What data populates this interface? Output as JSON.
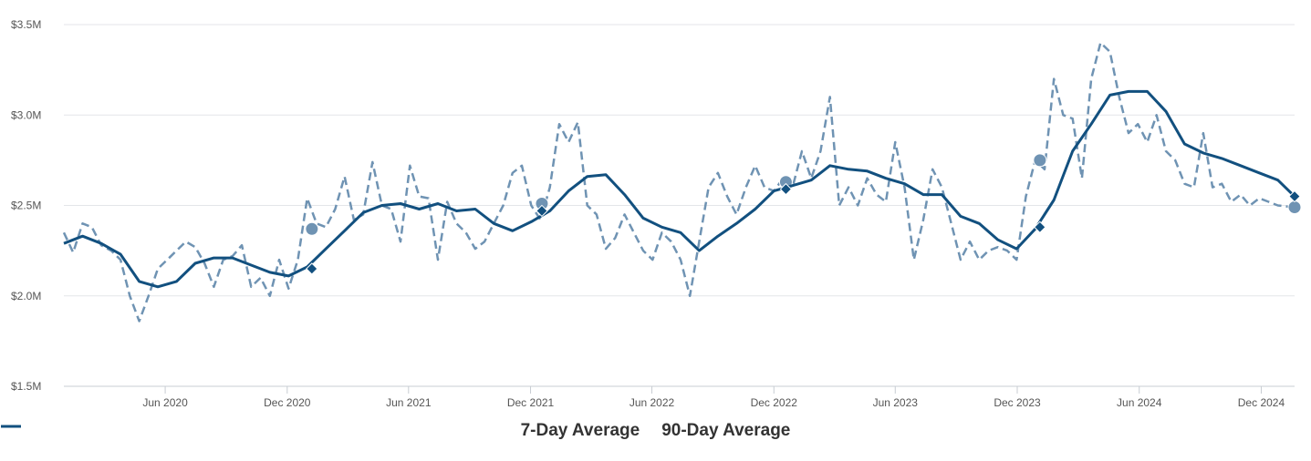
{
  "chart_data": {
    "type": "line",
    "title": "",
    "xlabel": "",
    "ylabel": "",
    "y_tick_labels": [
      "$1.5M",
      "$2.0M",
      "$2.5M",
      "$3.0M",
      "$3.5M"
    ],
    "y_ticks": [
      1500000,
      2000000,
      2500000,
      3000000,
      3500000
    ],
    "ylim": [
      1500000,
      3500000
    ],
    "xlim": [
      "2020-01-01",
      "2025-01-20"
    ],
    "x_tick_labels": [
      "Jun 2020",
      "Dec 2020",
      "Jun 2021",
      "Dec 2021",
      "Jun 2022",
      "Dec 2022",
      "Jun 2023",
      "Dec 2023",
      "Jun 2024",
      "Dec 2024"
    ],
    "x_ticks": [
      "2020-06-01",
      "2020-12-01",
      "2021-06-01",
      "2021-12-01",
      "2022-06-01",
      "2022-12-01",
      "2023-06-01",
      "2023-12-01",
      "2024-06-01",
      "2024-12-01"
    ],
    "grid": true,
    "legend_position": "bottom-center",
    "series": [
      {
        "name": "7-Day Average",
        "style": "dashed",
        "color": "#6f93b3",
        "marker": "circle",
        "points": [
          [
            "2020-01-01",
            2350000
          ],
          [
            "2020-01-15",
            2240000
          ],
          [
            "2020-01-29",
            2400000
          ],
          [
            "2020-02-12",
            2380000
          ],
          [
            "2020-02-26",
            2280000
          ],
          [
            "2020-03-12",
            2250000
          ],
          [
            "2020-03-26",
            2200000
          ],
          [
            "2020-04-09",
            2000000
          ],
          [
            "2020-04-23",
            1860000
          ],
          [
            "2020-05-07",
            2000000
          ],
          [
            "2020-05-21",
            2150000
          ],
          [
            "2020-06-04",
            2200000
          ],
          [
            "2020-06-18",
            2250000
          ],
          [
            "2020-07-02",
            2300000
          ],
          [
            "2020-07-16",
            2270000
          ],
          [
            "2020-07-30",
            2180000
          ],
          [
            "2020-08-13",
            2050000
          ],
          [
            "2020-08-27",
            2200000
          ],
          [
            "2020-09-10",
            2220000
          ],
          [
            "2020-09-24",
            2280000
          ],
          [
            "2020-10-08",
            2050000
          ],
          [
            "2020-10-22",
            2100000
          ],
          [
            "2020-11-05",
            2000000
          ],
          [
            "2020-11-19",
            2200000
          ],
          [
            "2020-12-03",
            2040000
          ],
          [
            "2020-12-17",
            2200000
          ],
          [
            "2020-12-31",
            2540000
          ],
          [
            "2021-01-14",
            2400000
          ],
          [
            "2021-01-28",
            2380000
          ],
          [
            "2021-02-11",
            2480000
          ],
          [
            "2021-02-25",
            2660000
          ],
          [
            "2021-03-11",
            2420000
          ],
          [
            "2021-03-25",
            2450000
          ],
          [
            "2021-04-08",
            2740000
          ],
          [
            "2021-04-22",
            2500000
          ],
          [
            "2021-05-06",
            2480000
          ],
          [
            "2021-05-20",
            2300000
          ],
          [
            "2021-06-03",
            2720000
          ],
          [
            "2021-06-17",
            2550000
          ],
          [
            "2021-07-01",
            2540000
          ],
          [
            "2021-07-15",
            2200000
          ],
          [
            "2021-07-29",
            2520000
          ],
          [
            "2021-08-12",
            2400000
          ],
          [
            "2021-08-26",
            2350000
          ],
          [
            "2021-09-09",
            2260000
          ],
          [
            "2021-09-23",
            2300000
          ],
          [
            "2021-10-07",
            2400000
          ],
          [
            "2021-10-21",
            2500000
          ],
          [
            "2021-11-04",
            2680000
          ],
          [
            "2021-11-18",
            2720000
          ],
          [
            "2021-12-02",
            2500000
          ],
          [
            "2021-12-16",
            2420000
          ],
          [
            "2021-12-30",
            2600000
          ],
          [
            "2022-01-13",
            2950000
          ],
          [
            "2022-01-27",
            2850000
          ],
          [
            "2022-02-10",
            2960000
          ],
          [
            "2022-02-24",
            2500000
          ],
          [
            "2022-03-10",
            2450000
          ],
          [
            "2022-03-24",
            2260000
          ],
          [
            "2022-04-07",
            2320000
          ],
          [
            "2022-04-21",
            2450000
          ],
          [
            "2022-05-05",
            2350000
          ],
          [
            "2022-05-19",
            2250000
          ],
          [
            "2022-06-02",
            2200000
          ],
          [
            "2022-06-16",
            2350000
          ],
          [
            "2022-06-30",
            2300000
          ],
          [
            "2022-07-14",
            2200000
          ],
          [
            "2022-07-28",
            2000000
          ],
          [
            "2022-08-11",
            2300000
          ],
          [
            "2022-08-25",
            2600000
          ],
          [
            "2022-09-08",
            2680000
          ],
          [
            "2022-09-22",
            2550000
          ],
          [
            "2022-10-06",
            2450000
          ],
          [
            "2022-10-20",
            2600000
          ],
          [
            "2022-11-03",
            2720000
          ],
          [
            "2022-11-17",
            2600000
          ],
          [
            "2022-12-01",
            2580000
          ],
          [
            "2022-12-15",
            2650000
          ],
          [
            "2022-12-29",
            2600000
          ],
          [
            "2023-01-12",
            2800000
          ],
          [
            "2023-01-26",
            2650000
          ],
          [
            "2023-02-09",
            2800000
          ],
          [
            "2023-02-23",
            3100000
          ],
          [
            "2023-03-09",
            2500000
          ],
          [
            "2023-03-23",
            2600000
          ],
          [
            "2023-04-06",
            2500000
          ],
          [
            "2023-04-20",
            2650000
          ],
          [
            "2023-05-04",
            2560000
          ],
          [
            "2023-05-18",
            2520000
          ],
          [
            "2023-06-01",
            2850000
          ],
          [
            "2023-06-15",
            2600000
          ],
          [
            "2023-06-29",
            2200000
          ],
          [
            "2023-07-13",
            2420000
          ],
          [
            "2023-07-27",
            2700000
          ],
          [
            "2023-08-10",
            2600000
          ],
          [
            "2023-08-24",
            2400000
          ],
          [
            "2023-09-07",
            2200000
          ],
          [
            "2023-09-21",
            2300000
          ],
          [
            "2023-10-05",
            2200000
          ],
          [
            "2023-10-19",
            2250000
          ],
          [
            "2023-11-02",
            2270000
          ],
          [
            "2023-11-16",
            2250000
          ],
          [
            "2023-11-30",
            2200000
          ],
          [
            "2023-12-14",
            2550000
          ],
          [
            "2023-12-28",
            2750000
          ],
          [
            "2024-01-11",
            2700000
          ],
          [
            "2024-01-25",
            3200000
          ],
          [
            "2024-02-08",
            3000000
          ],
          [
            "2024-02-22",
            2980000
          ],
          [
            "2024-03-07",
            2650000
          ],
          [
            "2024-03-21",
            3200000
          ],
          [
            "2024-04-04",
            3400000
          ],
          [
            "2024-04-18",
            3350000
          ],
          [
            "2024-05-02",
            3100000
          ],
          [
            "2024-05-16",
            2900000
          ],
          [
            "2024-05-30",
            2950000
          ],
          [
            "2024-06-13",
            2850000
          ],
          [
            "2024-06-27",
            3000000
          ],
          [
            "2024-07-11",
            2800000
          ],
          [
            "2024-07-25",
            2750000
          ],
          [
            "2024-08-08",
            2620000
          ],
          [
            "2024-08-22",
            2600000
          ],
          [
            "2024-09-05",
            2900000
          ],
          [
            "2024-09-19",
            2600000
          ],
          [
            "2024-10-03",
            2620000
          ],
          [
            "2024-10-17",
            2520000
          ],
          [
            "2024-10-31",
            2560000
          ],
          [
            "2024-11-14",
            2500000
          ],
          [
            "2024-11-28",
            2540000
          ],
          [
            "2024-12-12",
            2520000
          ],
          [
            "2024-12-26",
            2500000
          ],
          [
            "2025-01-20",
            2490000
          ]
        ],
        "highlighted": [
          [
            "2021-01-07",
            2370000
          ],
          [
            "2021-12-18",
            2510000
          ],
          [
            "2022-12-19",
            2630000
          ],
          [
            "2024-01-04",
            2750000
          ],
          [
            "2025-01-20",
            2490000
          ]
        ]
      },
      {
        "name": "90-Day Average",
        "style": "solid",
        "color": "#12507f",
        "marker": "diamond",
        "points": [
          [
            "2020-01-01",
            2290000
          ],
          [
            "2020-01-29",
            2330000
          ],
          [
            "2020-02-26",
            2290000
          ],
          [
            "2020-03-26",
            2230000
          ],
          [
            "2020-04-23",
            2080000
          ],
          [
            "2020-05-21",
            2050000
          ],
          [
            "2020-06-18",
            2080000
          ],
          [
            "2020-07-16",
            2180000
          ],
          [
            "2020-08-13",
            2210000
          ],
          [
            "2020-09-10",
            2210000
          ],
          [
            "2020-10-08",
            2170000
          ],
          [
            "2020-11-05",
            2130000
          ],
          [
            "2020-12-03",
            2110000
          ],
          [
            "2020-12-31",
            2160000
          ],
          [
            "2021-01-28",
            2260000
          ],
          [
            "2021-02-25",
            2360000
          ],
          [
            "2021-03-25",
            2460000
          ],
          [
            "2021-04-22",
            2500000
          ],
          [
            "2021-05-20",
            2510000
          ],
          [
            "2021-06-17",
            2480000
          ],
          [
            "2021-07-15",
            2510000
          ],
          [
            "2021-08-12",
            2470000
          ],
          [
            "2021-09-09",
            2480000
          ],
          [
            "2021-10-07",
            2400000
          ],
          [
            "2021-11-04",
            2360000
          ],
          [
            "2021-12-02",
            2410000
          ],
          [
            "2021-12-30",
            2470000
          ],
          [
            "2022-01-27",
            2580000
          ],
          [
            "2022-02-24",
            2660000
          ],
          [
            "2022-03-24",
            2670000
          ],
          [
            "2022-04-21",
            2560000
          ],
          [
            "2022-05-19",
            2430000
          ],
          [
            "2022-06-16",
            2380000
          ],
          [
            "2022-07-14",
            2350000
          ],
          [
            "2022-08-11",
            2250000
          ],
          [
            "2022-09-08",
            2330000
          ],
          [
            "2022-10-06",
            2400000
          ],
          [
            "2022-11-03",
            2480000
          ],
          [
            "2022-12-01",
            2580000
          ],
          [
            "2022-12-29",
            2610000
          ],
          [
            "2023-01-26",
            2640000
          ],
          [
            "2023-02-23",
            2720000
          ],
          [
            "2023-03-23",
            2700000
          ],
          [
            "2023-04-20",
            2690000
          ],
          [
            "2023-05-18",
            2650000
          ],
          [
            "2023-06-15",
            2620000
          ],
          [
            "2023-07-13",
            2560000
          ],
          [
            "2023-08-10",
            2560000
          ],
          [
            "2023-09-07",
            2440000
          ],
          [
            "2023-10-05",
            2400000
          ],
          [
            "2023-11-02",
            2310000
          ],
          [
            "2023-11-30",
            2260000
          ],
          [
            "2023-12-28",
            2370000
          ],
          [
            "2024-01-25",
            2530000
          ],
          [
            "2024-02-22",
            2800000
          ],
          [
            "2024-03-21",
            2950000
          ],
          [
            "2024-04-18",
            3110000
          ],
          [
            "2024-05-16",
            3130000
          ],
          [
            "2024-06-13",
            3130000
          ],
          [
            "2024-07-11",
            3020000
          ],
          [
            "2024-08-08",
            2840000
          ],
          [
            "2024-09-05",
            2790000
          ],
          [
            "2024-10-03",
            2760000
          ],
          [
            "2024-10-31",
            2720000
          ],
          [
            "2024-11-28",
            2680000
          ],
          [
            "2024-12-26",
            2640000
          ],
          [
            "2025-01-20",
            2550000
          ]
        ],
        "highlighted": [
          [
            "2021-01-07",
            2150000
          ],
          [
            "2021-12-18",
            2470000
          ],
          [
            "2022-12-19",
            2590000
          ],
          [
            "2024-01-04",
            2380000
          ],
          [
            "2025-01-20",
            2550000
          ]
        ]
      }
    ]
  }
}
